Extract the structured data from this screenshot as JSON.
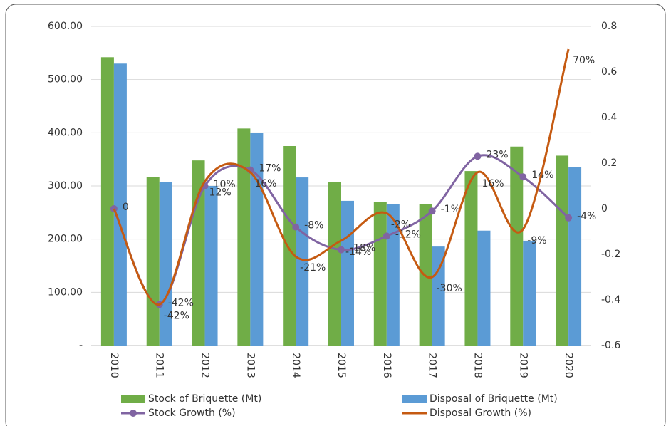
{
  "chart_data": {
    "type": "bar-line",
    "categories": [
      "2010",
      "2011",
      "2012",
      "2013",
      "2014",
      "2015",
      "2016",
      "2017",
      "2018",
      "2019",
      "2020"
    ],
    "series": [
      {
        "name": "Stock of Briquette (Mt)",
        "type": "bar",
        "color": "#70ad47",
        "values": [
          542,
          317,
          348,
          408,
          375,
          308,
          270,
          266,
          328,
          374,
          357
        ]
      },
      {
        "name": "Disposal of Briquette (Mt)",
        "type": "bar",
        "color": "#5b9bd5",
        "values": [
          530,
          307,
          300,
          400,
          316,
          272,
          266,
          186,
          216,
          197,
          335
        ]
      },
      {
        "name": "Stock Growth (%)",
        "type": "line",
        "axis": "y2",
        "color": "#8064a2",
        "marker": true,
        "values": [
          0,
          -0.42,
          0.1,
          0.17,
          -0.08,
          -0.18,
          -0.12,
          -0.01,
          0.23,
          0.14,
          -0.04
        ],
        "value_labels": [
          "0",
          "-42%",
          "10%",
          "17%",
          "-8%",
          "-18%",
          "-12%",
          "-1%",
          "23%",
          "14%",
          "-4%"
        ]
      },
      {
        "name": "Disposal Growth (%)",
        "type": "line",
        "axis": "y2",
        "color": "#c55a11",
        "marker": false,
        "values": [
          0,
          -0.42,
          0.12,
          0.16,
          -0.21,
          -0.14,
          -0.02,
          -0.3,
          0.16,
          -0.09,
          0.7
        ],
        "value_labels": [
          null,
          "-42%",
          "12%",
          "16%",
          "-21%",
          "-14%",
          "-2%",
          "-30%",
          "16%",
          "-9%",
          "70%"
        ]
      }
    ],
    "ylim": [
      0,
      600
    ],
    "yticks": [
      {
        "value": 0,
        "label": "-"
      },
      {
        "value": 100,
        "label": "100.00"
      },
      {
        "value": 200,
        "label": "200.00"
      },
      {
        "value": 300,
        "label": "300.00"
      },
      {
        "value": 400,
        "label": "400.00"
      },
      {
        "value": 500,
        "label": "500.00"
      },
      {
        "value": 600,
        "label": "600.00"
      }
    ],
    "y2lim": [
      -0.6,
      0.8
    ],
    "y2ticks": [
      -0.6,
      -0.4,
      -0.2,
      0,
      0.2,
      0.4,
      0.6,
      0.8
    ],
    "grid": true
  }
}
